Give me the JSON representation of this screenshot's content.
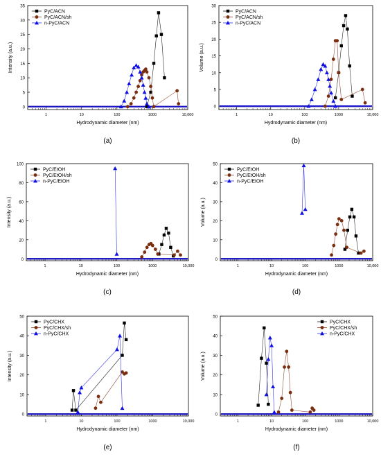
{
  "figure": {
    "chart_data": [
      {
        "panel_label": "(a)",
        "type": "scatter",
        "xlabel": "Hydrodynamic diameter (nm)",
        "ylabel": "Intensity (a.u.)",
        "xscale": "log",
        "xlim": [
          0.3,
          10000
        ],
        "ylim": [
          -1,
          35
        ],
        "yticks": [
          0,
          5,
          10,
          15,
          20,
          25,
          30,
          35
        ],
        "xticks": [
          1,
          10,
          100,
          1000,
          10000
        ],
        "xtick_labels": [
          "1",
          "10",
          "100",
          "1000",
          "10,000"
        ],
        "legend": "top-left",
        "series": [
          {
            "name": "PyC/ACN",
            "color": "#000000",
            "marker": "square",
            "x": [
              700,
              900,
              1100,
              1300,
              1500,
              1800,
              2200
            ],
            "y": [
              0,
              5,
              15,
              24.5,
              32.5,
              25,
              10
            ]
          },
          {
            "name": "PyC/ACN/sh",
            "color": "#7a2e10",
            "marker": "circle",
            "x": [
              200,
              250,
              300,
              350,
              400,
              450,
              500,
              550,
              600,
              650,
              700,
              800,
              900,
              1000,
              1100,
              5000,
              5500
            ],
            "y": [
              0,
              1,
              3,
              5,
              7,
              9,
              11,
              12,
              12.5,
              13,
              12,
              10,
              7,
              3,
              0,
              5.5,
              1
            ]
          },
          {
            "name": "n-PyC/ACN",
            "color": "#1010e0",
            "marker": "triangle",
            "x": [
              130,
              160,
              190,
              220,
              260,
              300,
              350,
              400,
              450,
              500,
              550,
              600,
              650,
              700,
              800
            ],
            "y": [
              0,
              2,
              5,
              8,
              11,
              13.5,
              14.3,
              13.8,
              12,
              10,
              7.5,
              5,
              3,
              1,
              0
            ]
          }
        ]
      },
      {
        "panel_label": "(b)",
        "type": "scatter",
        "xlabel": "Hydrodynamic diameter (nm)",
        "ylabel": "Volume (a.u.)",
        "xscale": "log",
        "xlim": [
          0.3,
          10000
        ],
        "ylim": [
          -1,
          30
        ],
        "yticks": [
          0,
          5,
          10,
          15,
          20,
          25,
          30
        ],
        "xticks": [
          1,
          10,
          100,
          1000,
          10000
        ],
        "xtick_labels": [
          "1",
          "10",
          "100",
          "1000",
          "10,000"
        ],
        "legend": "top-left",
        "series": [
          {
            "name": "PyC/ACN",
            "color": "#000000",
            "marker": "square",
            "x": [
              800,
              1000,
              1200,
              1400,
              1600,
              1800,
              2100,
              2500
            ],
            "y": [
              2.5,
              10,
              18,
              24,
              27,
              23,
              12,
              3
            ]
          },
          {
            "name": "PyC/ACN/sh",
            "color": "#7a2e10",
            "marker": "circle",
            "x": [
              400,
              500,
              600,
              700,
              800,
              900,
              1000,
              1200,
              5000,
              6000
            ],
            "y": [
              0,
              3,
              8,
              14,
              19.5,
              19.5,
              10,
              2,
              5,
              1
            ]
          },
          {
            "name": "n-PyC/ACN",
            "color": "#1010e0",
            "marker": "triangle",
            "x": [
              130,
              160,
              200,
              250,
              300,
              350,
              400,
              450,
              500,
              550,
              600,
              700,
              800
            ],
            "y": [
              0,
              2,
              5,
              8,
              11,
              12.5,
              12,
              10,
              8,
              6,
              4,
              1.5,
              0
            ]
          }
        ]
      },
      {
        "panel_label": "(c)",
        "type": "scatter",
        "xlabel": "Hydrodynamic diameter (nm)",
        "ylabel": "Intensity (a.u.)",
        "xscale": "log",
        "xlim": [
          0.3,
          10000
        ],
        "ylim": [
          -2,
          100
        ],
        "yticks": [
          0,
          20,
          40,
          60,
          80,
          100
        ],
        "xticks": [
          1,
          10,
          100,
          1000,
          10000
        ],
        "xtick_labels": [
          "1",
          "10",
          "100",
          "1000",
          "10,000"
        ],
        "legend": "top-left",
        "series": [
          {
            "name": "PyC/EtOH",
            "color": "#000000",
            "marker": "square",
            "x": [
              1500,
              1800,
              2100,
              2400,
              2800,
              3200,
              3800
            ],
            "y": [
              5,
              15,
              25,
              32,
              27,
              12,
              3
            ]
          },
          {
            "name": "PyC/EtOH/sh",
            "color": "#7a2e10",
            "marker": "circle",
            "x": [
              500,
              600,
              700,
              800,
              900,
              1000,
              1200,
              1400,
              4000,
              5000,
              6000
            ],
            "y": [
              2,
              7,
              12,
              15,
              16,
              14,
              10,
              5,
              4,
              8,
              4
            ]
          },
          {
            "name": "n-PyC/EtOH",
            "color": "#1010e0",
            "marker": "triangle",
            "x": [
              90,
              100
            ],
            "y": [
              95,
              5
            ]
          }
        ]
      },
      {
        "panel_label": "(d)",
        "type": "scatter",
        "xlabel": "Hydrodynamic diameter (nm)",
        "ylabel": "Volume (a.u.)",
        "xscale": "log",
        "xlim": [
          0.3,
          10000
        ],
        "ylim": [
          -1,
          50
        ],
        "yticks": [
          0,
          10,
          20,
          30,
          40,
          50
        ],
        "xticks": [
          1,
          10,
          100,
          1000,
          10000
        ],
        "xtick_labels": [
          "1",
          "10",
          "100",
          "1000",
          "10,000"
        ],
        "legend": "top-left",
        "series": [
          {
            "name": "PyC/EtOH",
            "color": "#000000",
            "marker": "square",
            "x": [
              1500,
              1800,
              2100,
              2400,
              2800,
              3200,
              3800
            ],
            "y": [
              5,
              15,
              22,
              26,
              22,
              12,
              3
            ]
          },
          {
            "name": "PyC/EtOH/sh",
            "color": "#7a2e10",
            "marker": "circle",
            "x": [
              600,
              700,
              800,
              900,
              1000,
              1200,
              1400,
              1700,
              4500,
              5500
            ],
            "y": [
              2,
              7,
              13,
              18,
              21,
              20,
              15,
              6,
              3,
              4
            ]
          },
          {
            "name": "n-PyC/EtOH",
            "color": "#1010e0",
            "marker": "triangle",
            "x": [
              80,
              90,
              100
            ],
            "y": [
              24,
              49,
              26
            ]
          }
        ]
      },
      {
        "panel_label": "(e)",
        "type": "scatter",
        "xlabel": "Hydrodynamic diameter (nm)",
        "ylabel": "Intensity (a.u.)",
        "xscale": "log",
        "xlim": [
          0.3,
          10000
        ],
        "ylim": [
          -1,
          50
        ],
        "yticks": [
          0,
          10,
          20,
          30,
          40,
          50
        ],
        "xticks": [
          1,
          10,
          100,
          1000,
          10000
        ],
        "xtick_labels": [
          "1",
          "10",
          "100",
          "1000",
          "10,000"
        ],
        "legend": "top-left",
        "series": [
          {
            "name": "PyC/CHX",
            "color": "#000000",
            "marker": "square",
            "x": [
              5.5,
              6,
              7,
              140,
              160,
              180
            ],
            "y": [
              2,
              12,
              2,
              30,
              46.5,
              38
            ]
          },
          {
            "name": "PyC/CHX/sh",
            "color": "#7a2e10",
            "marker": "circle",
            "x": [
              25,
              30,
              35,
              140,
              160,
              180
            ],
            "y": [
              3,
              9,
              6,
              21.5,
              20.5,
              21
            ]
          },
          {
            "name": "n-PyC/CHX",
            "color": "#1010e0",
            "marker": "triangle",
            "x": [
              8,
              9,
              10,
              100,
              120,
              140
            ],
            "y": [
              1,
              11,
              13.5,
              33,
              40,
              3
            ]
          }
        ]
      },
      {
        "panel_label": "(f)",
        "type": "scatter",
        "xlabel": "Hydrodynamic diameter (nm)",
        "ylabel": "Volume (a.u.)",
        "xscale": "log",
        "xlim": [
          0.3,
          10000
        ],
        "ylim": [
          -1,
          50
        ],
        "yticks": [
          0,
          10,
          20,
          30,
          40,
          50
        ],
        "xticks": [
          1,
          10,
          100,
          1000,
          10000
        ],
        "xtick_labels": [
          "1",
          "10",
          "100",
          "1000",
          "10,000"
        ],
        "legend": "top-right",
        "series": [
          {
            "name": "PyC/CHX",
            "color": "#000000",
            "marker": "square",
            "x": [
              4,
              5,
              6,
              7,
              8
            ],
            "y": [
              4.5,
              28.5,
              44,
              26,
              5
            ]
          },
          {
            "name": "PyC/CHX/sh",
            "color": "#7a2e10",
            "marker": "circle",
            "x": [
              16,
              20,
              24,
              28,
              32,
              36,
              40,
              140,
              160,
              180
            ],
            "y": [
              1,
              8,
              24,
              32,
              24,
              11,
              2,
              1,
              3,
              2
            ]
          },
          {
            "name": "n-PyC/CHX",
            "color": "#1010e0",
            "marker": "triangle",
            "x": [
              7,
              8,
              9,
              10,
              11,
              12
            ],
            "y": [
              10,
              28,
              39,
              35,
              14,
              1
            ]
          }
        ]
      }
    ]
  }
}
